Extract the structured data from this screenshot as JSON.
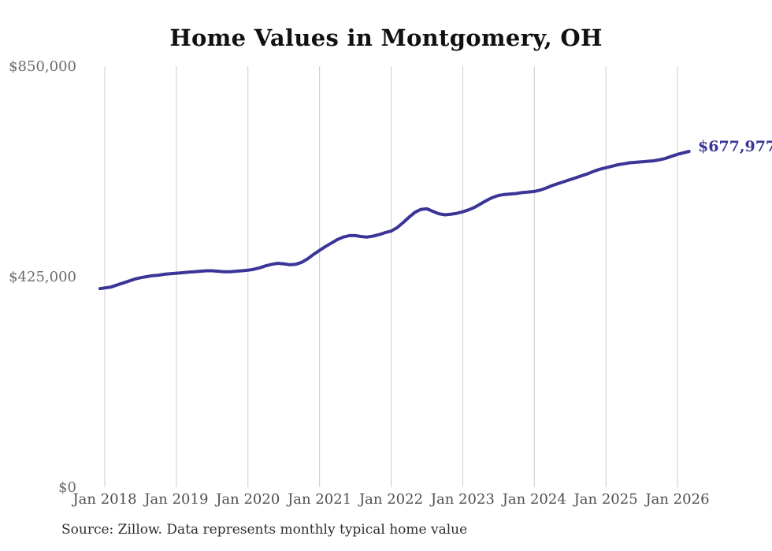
{
  "title": "Home Values in Montgomery, OH",
  "source_note": "Source: Zillow. Data represents monthly typical home value",
  "colors": {
    "background": "#ffffff",
    "line": "#3a3596",
    "end_label": "#3a3596",
    "gridline": "#cccccc",
    "title_text": "#111111",
    "y_tick_text": "#6b6b6b",
    "x_tick_text": "#4f4f4f",
    "source_text": "#2e2e2e"
  },
  "chart_data": {
    "type": "line",
    "title": "Home Values in Montgomery, OH",
    "xlabel": "",
    "ylabel": "",
    "ylim": [
      0,
      850000
    ],
    "grid": "vertical-only",
    "legend": "none",
    "y_tick_labels": [
      "$850,000",
      "$425,000",
      "$0"
    ],
    "y_tick_values": [
      850000,
      425000,
      0
    ],
    "x_tick_labels": [
      "Jan 2018",
      "Jan 2019",
      "Jan 2020",
      "Jan 2021",
      "Jan 2022",
      "Jan 2023",
      "Jan 2024",
      "Jan 2025",
      "Jan 2026"
    ],
    "latest_value": 677977,
    "latest_value_label": "$677,977",
    "series": [
      {
        "name": "Monthly typical home value",
        "months": [
          "2018-01",
          "2018-02",
          "2018-03",
          "2018-04",
          "2018-05",
          "2018-06",
          "2018-07",
          "2018-08",
          "2018-09",
          "2018-10",
          "2018-11",
          "2018-12",
          "2019-01",
          "2019-02",
          "2019-03",
          "2019-04",
          "2019-05",
          "2019-06",
          "2019-07",
          "2019-08",
          "2019-09",
          "2019-10",
          "2019-11",
          "2019-12",
          "2020-01",
          "2020-02",
          "2020-03",
          "2020-04",
          "2020-05",
          "2020-06",
          "2020-07",
          "2020-08",
          "2020-09",
          "2020-10",
          "2020-11",
          "2020-12",
          "2021-01",
          "2021-02",
          "2021-03",
          "2021-04",
          "2021-05",
          "2021-06",
          "2021-07",
          "2021-08",
          "2021-09",
          "2021-10",
          "2021-11",
          "2021-12",
          "2022-01",
          "2022-02",
          "2022-03",
          "2022-04",
          "2022-05",
          "2022-06",
          "2022-07",
          "2022-08",
          "2022-09",
          "2022-10",
          "2022-11",
          "2022-12",
          "2023-01",
          "2023-02",
          "2023-03",
          "2023-04",
          "2023-05",
          "2023-06",
          "2023-07",
          "2023-08",
          "2023-09",
          "2023-10",
          "2023-11",
          "2023-12",
          "2024-01",
          "2024-02",
          "2024-03",
          "2024-04",
          "2024-05",
          "2024-06",
          "2024-07",
          "2024-08",
          "2024-09",
          "2024-10",
          "2024-11",
          "2024-12",
          "2025-01",
          "2025-02",
          "2025-03",
          "2025-04",
          "2025-05",
          "2025-06",
          "2025-07",
          "2025-08",
          "2025-09",
          "2025-10",
          "2025-11",
          "2025-12",
          "2026-01",
          "2026-02"
        ],
        "values": [
          401000,
          404000,
          408000,
          412000,
          416000,
          420000,
          423000,
          425000,
          427000,
          428000,
          430000,
          431000,
          432000,
          433000,
          434000,
          435000,
          436000,
          437000,
          437000,
          436000,
          435000,
          435000,
          436000,
          437000,
          438000,
          440000,
          443000,
          447000,
          450000,
          452000,
          451000,
          449000,
          450000,
          454000,
          461000,
          470000,
          478000,
          486000,
          493000,
          500000,
          505000,
          508000,
          508000,
          506000,
          505000,
          507000,
          510000,
          514000,
          517000,
          524000,
          534000,
          545000,
          555000,
          561000,
          562000,
          557000,
          552000,
          550000,
          551000,
          553000,
          556000,
          560000,
          565000,
          572000,
          579000,
          585000,
          589000,
          591000,
          592000,
          593000,
          595000,
          596000,
          597000,
          600000,
          604000,
          609000,
          613000,
          617000,
          621000,
          625000,
          629000,
          633000,
          638000,
          642000,
          645000,
          648000,
          651000,
          653000,
          655000,
          656000,
          657000,
          658000,
          659000,
          661000,
          664000,
          668000,
          672000,
          677977
        ]
      }
    ]
  }
}
